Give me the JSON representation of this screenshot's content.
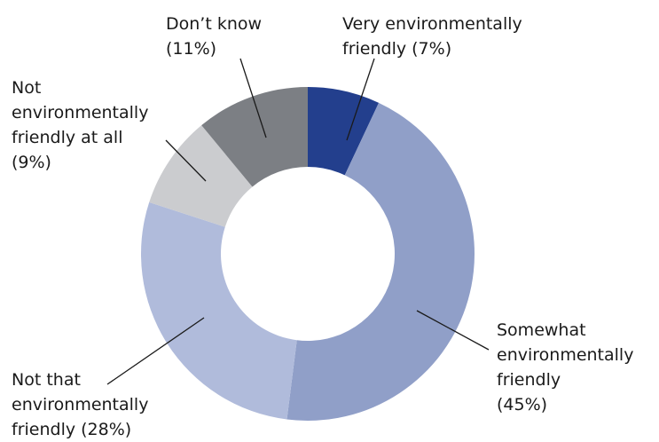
{
  "chart_data": {
    "type": "pie",
    "variant": "donut",
    "slices": [
      {
        "label_lines": [
          "Very environmentally",
          "friendly (7%)"
        ],
        "name": "Very environmentally friendly",
        "value": 7,
        "color": "#233f8d"
      },
      {
        "label_lines": [
          "Somewhat",
          "environmentally",
          "friendly",
          "(45%)"
        ],
        "name": "Somewhat environmentally friendly",
        "value": 45,
        "color": "#909fc8"
      },
      {
        "label_lines": [
          "Not that",
          "environmentally",
          "friendly (28%)"
        ],
        "name": "Not that environmentally friendly",
        "value": 28,
        "color": "#b0bbdb"
      },
      {
        "label_lines": [
          "Not",
          "environmentally",
          "friendly at all",
          "(9%)"
        ],
        "name": "Not environmentally friendly at all",
        "value": 9,
        "color": "#cbcccf"
      },
      {
        "label_lines": [
          "Don’t know",
          "(11%)"
        ],
        "name": "Don’t know",
        "value": 11,
        "color": "#7c7f84"
      }
    ],
    "title": "",
    "legend": "none"
  }
}
